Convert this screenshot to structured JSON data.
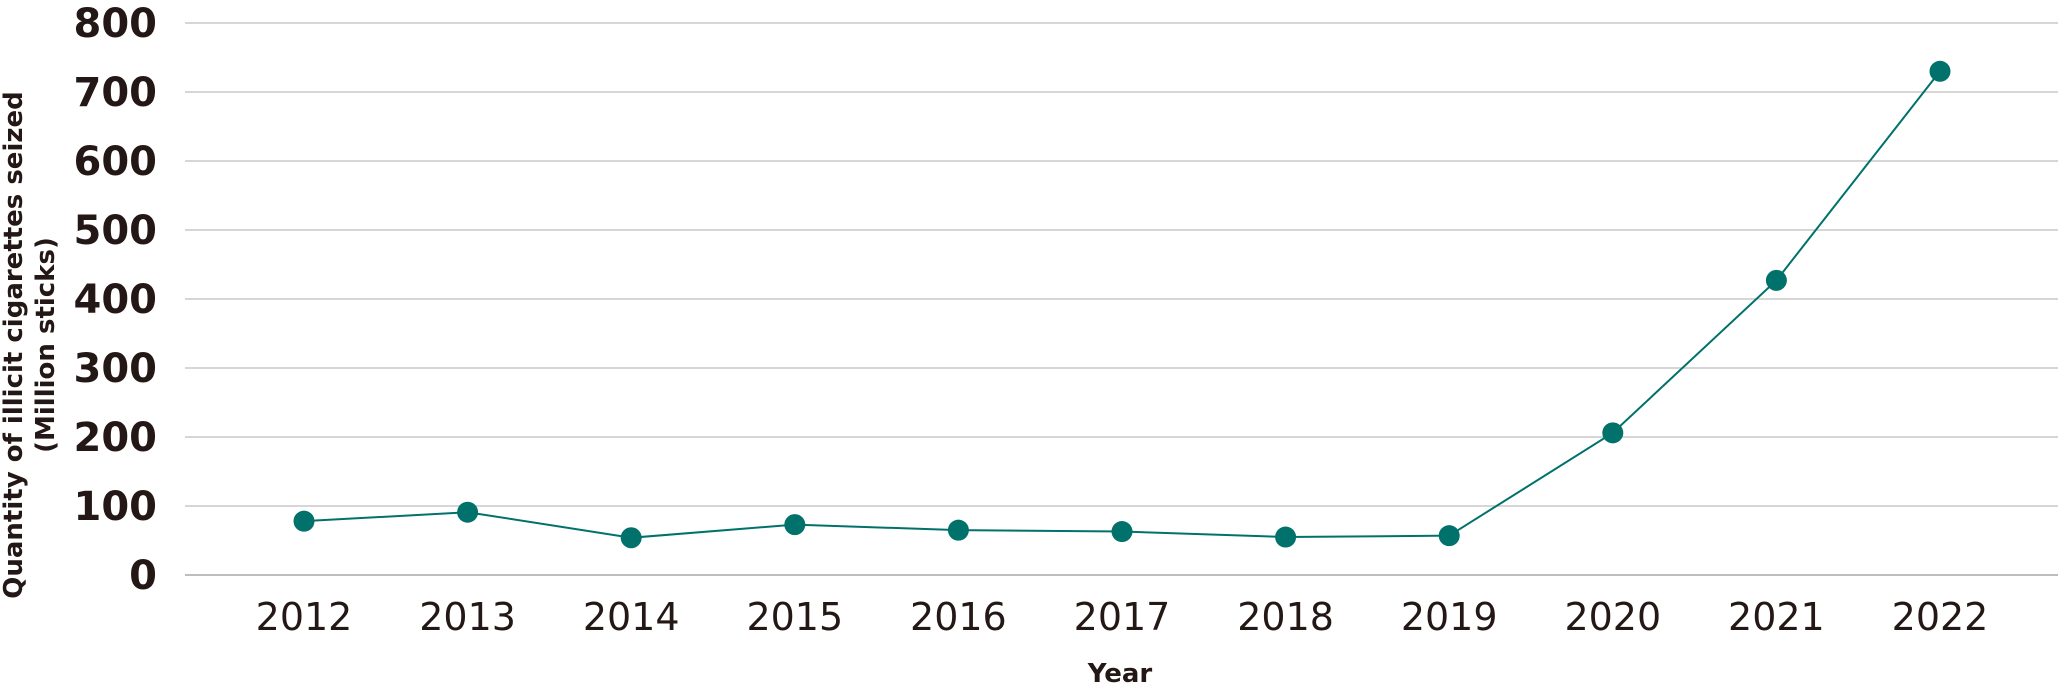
{
  "chart_data": {
    "type": "line",
    "title": "",
    "xlabel": "Year",
    "ylabel_line1": "Quantity of illicit cigarettes seized",
    "ylabel_line2": "(Million sticks)",
    "x": [
      "2012",
      "2013",
      "2014",
      "2015",
      "2016",
      "2017",
      "2018",
      "2019",
      "2020",
      "2021",
      "2022"
    ],
    "series": [
      {
        "values": [
          78,
          91,
          54,
          73,
          65,
          63,
          55,
          57,
          206,
          427,
          730
        ],
        "color": "#00716b"
      }
    ],
    "ylim": [
      0,
      800
    ],
    "yticks": [
      "0",
      "100",
      "200",
      "300",
      "400",
      "500",
      "600",
      "700",
      "800"
    ],
    "grid": true,
    "legend": "none"
  }
}
